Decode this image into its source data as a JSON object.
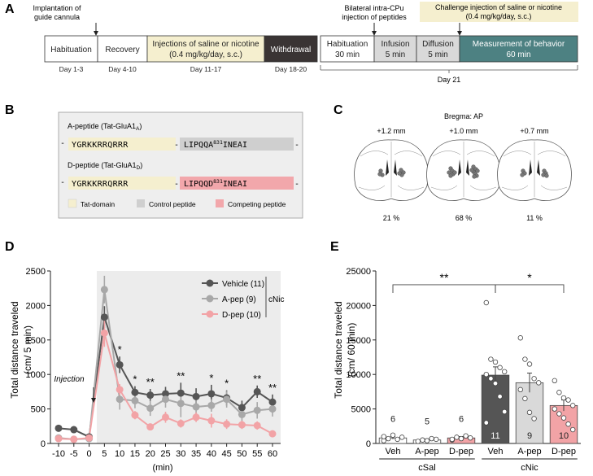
{
  "panel_labels": [
    "A",
    "B",
    "C",
    "D",
    "E"
  ],
  "panelA": {
    "implant_label": [
      "Implantation of",
      "guide cannula"
    ],
    "bilateral_label": [
      "Bilateral intra-CPu",
      "injection of peptides"
    ],
    "challenge_label": [
      "Challenge injection of saline or nicotine",
      "(0.4 mg/kg/day, s.c.)"
    ],
    "boxes": [
      {
        "lines": [
          "Habituation"
        ],
        "days": "Day 1-3",
        "fill": "#ffffff",
        "text_color": "#222222"
      },
      {
        "lines": [
          "Recovery"
        ],
        "days": "Day 4-10",
        "fill": "#ffffff",
        "text_color": "#222222"
      },
      {
        "lines": [
          "Injections of saline or nicotine",
          "(0.4 mg/kg/day, s.c.)"
        ],
        "days": "Day 11-17",
        "fill": "#f5efcf",
        "text_color": "#222222"
      },
      {
        "lines": [
          "Withdrawal"
        ],
        "days": "Day 18-20",
        "fill": "#3a3434",
        "text_color": "#ffffff"
      },
      {
        "lines": [
          "Habituation",
          "30 min"
        ],
        "days": "",
        "fill": "#ffffff",
        "text_color": "#222222"
      },
      {
        "lines": [
          "Infusion",
          "5 min"
        ],
        "days": "",
        "fill": "#d9d9d9",
        "text_color": "#222222"
      },
      {
        "lines": [
          "Diffusion",
          "5 min"
        ],
        "days": "",
        "fill": "#d9d9d9",
        "text_color": "#222222"
      },
      {
        "lines": [
          "Measurement of behavior",
          "60 min"
        ],
        "days": "",
        "fill": "#4d8182",
        "text_color": "#ffffff"
      }
    ],
    "day21": "Day 21"
  },
  "panelB": {
    "a_title": "A-peptide (Tat-GluA1",
    "a_sub": "A",
    "d_title": "D-peptide (Tat-GluA1",
    "d_sub": "D",
    "close_paren": ")",
    "tat_seq": "YGRKKRRQRRR",
    "dash": "-",
    "a_seq_head": "LIPQQA",
    "d_seq_head": "LIPQQD",
    "sup": "831",
    "seq_tail": "INEAI",
    "legend": [
      "Tat-domain",
      "Control peptide",
      "Competing peptide"
    ],
    "colors": {
      "tat": "#f5efcf",
      "control": "#cfcfcf",
      "competing": "#f2a7ab",
      "box_bg": "#eeeeee"
    }
  },
  "panelC": {
    "title": "Bregma: AP",
    "sections": [
      {
        "label": "+1.2 mm",
        "percent": "21 %"
      },
      {
        "label": "+1.0 mm",
        "percent": "68 %"
      },
      {
        "label": "+0.7 mm",
        "percent": "11 %"
      }
    ]
  },
  "chart_data": [
    {
      "panel": "D",
      "type": "line",
      "ylabel": "Total distance traveled",
      "ylabel2": "(cm/ 5 min)",
      "xlabel": "(min)",
      "ylim": [
        0,
        2500
      ],
      "yticks": [
        0,
        500,
        1000,
        1500,
        2000,
        2500
      ],
      "x": [
        -10,
        -5,
        0,
        5,
        10,
        15,
        20,
        25,
        30,
        35,
        40,
        45,
        50,
        55,
        60
      ],
      "annotation": "Injection",
      "legend_group": "cNic",
      "series": [
        {
          "name": "Vehicle (11)",
          "color": "#555555",
          "values": [
            220,
            200,
            95,
            1830,
            1140,
            740,
            700,
            720,
            730,
            680,
            720,
            660,
            520,
            750,
            600
          ],
          "errors": [
            40,
            40,
            20,
            160,
            120,
            90,
            90,
            100,
            150,
            120,
            130,
            110,
            100,
            90,
            110
          ]
        },
        {
          "name": "A-pep (9)",
          "color": "#a8a8a8",
          "values": [
            80,
            60,
            70,
            2230,
            640,
            620,
            510,
            640,
            580,
            530,
            550,
            640,
            420,
            480,
            500
          ],
          "errors": [
            20,
            20,
            20,
            200,
            150,
            110,
            110,
            120,
            200,
            130,
            90,
            120,
            100,
            120,
            110
          ]
        },
        {
          "name": "D-pep (10)",
          "color": "#f2a3a6",
          "values": [
            70,
            60,
            80,
            1600,
            780,
            410,
            240,
            380,
            290,
            380,
            330,
            280,
            270,
            260,
            140
          ],
          "errors": [
            20,
            20,
            20,
            200,
            80,
            60,
            40,
            80,
            60,
            70,
            100,
            70,
            60,
            60,
            30
          ]
        }
      ],
      "significance": [
        {
          "x": 10,
          "label": "*"
        },
        {
          "x": 15,
          "label": "*"
        },
        {
          "x": 20,
          "label": "**"
        },
        {
          "x": 30,
          "label": "**"
        },
        {
          "x": 40,
          "label": "*"
        },
        {
          "x": 45,
          "label": "*"
        },
        {
          "x": 55,
          "label": "**"
        },
        {
          "x": 60,
          "label": "**"
        }
      ]
    },
    {
      "panel": "E",
      "type": "bar",
      "ylabel": "Total distance traveled",
      "ylabel2": "(cm/ 60 min)",
      "ylim": [
        0,
        25000
      ],
      "yticks": [
        0,
        5000,
        10000,
        15000,
        20000,
        25000
      ],
      "categories": [
        "Veh",
        "A-pep",
        "D-pep",
        "Veh",
        "A-pep",
        "D-pep"
      ],
      "groups": [
        {
          "name": "cSal",
          "from": 0,
          "to": 2
        },
        {
          "name": "cNic",
          "from": 3,
          "to": 5
        }
      ],
      "values": [
        800,
        500,
        800,
        9900,
        8800,
        5500
      ],
      "errors": [
        200,
        150,
        200,
        1200,
        1400,
        800
      ],
      "n": [
        "6",
        "5",
        "6",
        "11",
        "9",
        "10"
      ],
      "colors": [
        "#ffffff",
        "#ffffff",
        "#f2a3a6",
        "#555555",
        "#d9d9d9",
        "#f2a3a6"
      ],
      "points": [
        [
          400,
          700,
          1200,
          600,
          900,
          1000
        ],
        [
          300,
          500,
          400,
          700,
          600
        ],
        [
          500,
          900,
          700,
          1100,
          800,
          600
        ],
        [
          20400,
          12200,
          11800,
          11000,
          10400,
          10000,
          9400,
          8700,
          6800,
          4600,
          3000
        ],
        [
          15300,
          12200,
          11500,
          9400,
          8800,
          7800,
          6500,
          4500,
          3600
        ],
        [
          9100,
          7400,
          6600,
          6300,
          5500,
          5000,
          4300,
          3700,
          2800,
          2000
        ]
      ],
      "significance": [
        {
          "from": 0,
          "to": 3,
          "y": 23000,
          "label": "**"
        },
        {
          "from": 3,
          "to": 5,
          "y": 23000,
          "label": "*"
        }
      ]
    }
  ]
}
